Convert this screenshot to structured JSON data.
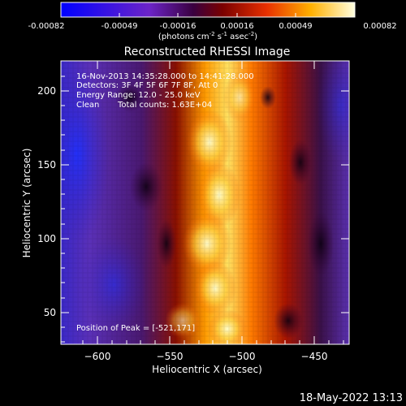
{
  "colorbar": {
    "ticks": [
      "-0.00082",
      "-0.00049",
      "-0.00016",
      "0.00016",
      "0.00049",
      "0.00082"
    ],
    "unit_label": "(photons cm",
    "unit_exp1": "-2",
    "unit_mid": " s",
    "unit_exp2": "-1",
    "unit_mid2": " asec",
    "unit_exp3": "-2",
    "unit_end": ")"
  },
  "plot": {
    "title": "Reconstructed RHESSI Image",
    "xlabel": "Heliocentric X (arcsec)",
    "ylabel": "Heliocentric Y (arcsec)",
    "xticks": [
      "−600",
      "−550",
      "−500",
      "−450"
    ],
    "yticks": [
      "200",
      "150",
      "100",
      "50"
    ],
    "annotations": {
      "line1": "16-Nov-2013 14:35:28.000 to 14:41:28.000",
      "line2": "Detectors: 3F 4F 5F 6F 7F 8F, Att 0",
      "line3": "Energy Range: 12.0 - 25.0 keV",
      "line4_a": "Clean",
      "line4_b": "Total counts: 1.63E+04",
      "peak": "Position of Peak = [-521,171]"
    }
  },
  "footer": {
    "timestamp": "18-May-2022 13:13"
  }
}
